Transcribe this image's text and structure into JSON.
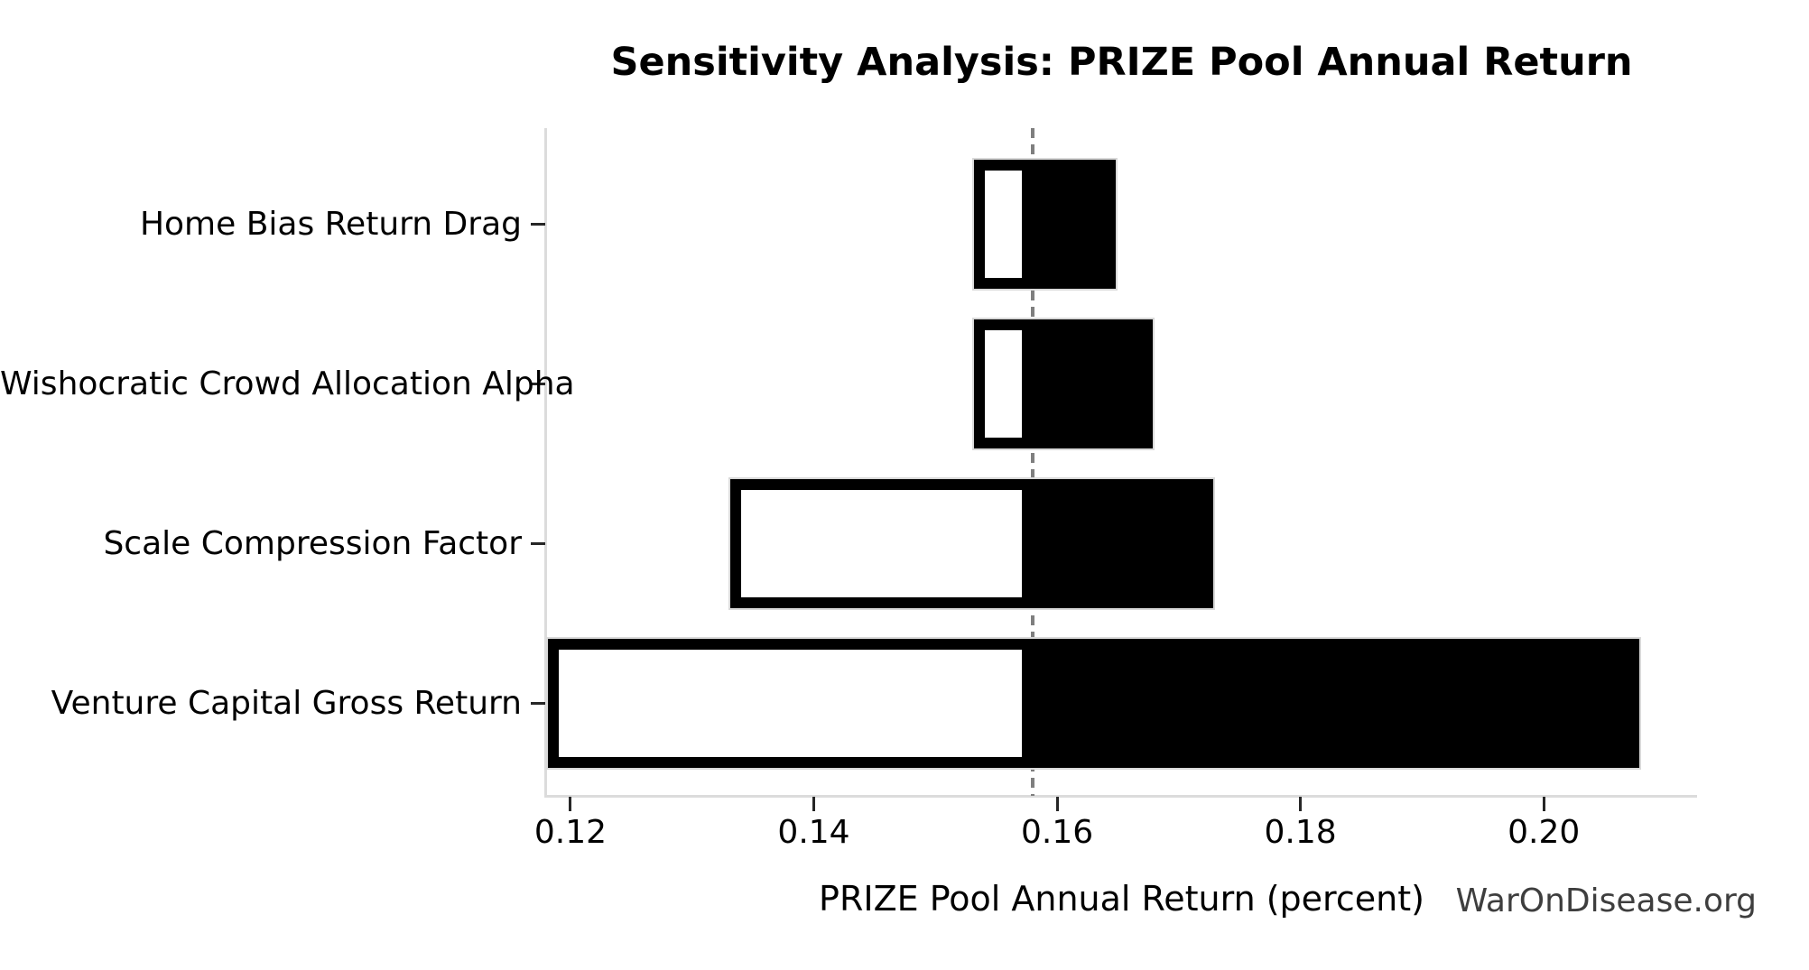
{
  "chart_data": {
    "type": "bar",
    "subtype": "tornado-sensitivity",
    "orientation": "horizontal",
    "title": "Sensitivity Analysis: PRIZE Pool Annual Return",
    "xlabel": "PRIZE Pool Annual Return (percent)",
    "ylabel": "",
    "watermark": "WarOnDisease.org",
    "baseline": 0.158,
    "xlim": [
      0.118,
      0.2126
    ],
    "xticks": [
      0.12,
      0.14,
      0.16,
      0.18,
      0.2
    ],
    "xtick_labels": [
      "0.12",
      "0.14",
      "0.16",
      "0.18",
      "0.20"
    ],
    "categories": [
      "Home Bias Return Drag",
      "Wishocratic Crowd Allocation Alpha",
      "Scale Compression Factor",
      "Venture Capital Gross Return"
    ],
    "series": [
      {
        "name": "low_value",
        "values": [
          0.153,
          0.153,
          0.133,
          0.118
        ]
      },
      {
        "name": "high_value",
        "values": [
          0.165,
          0.168,
          0.173,
          0.208
        ]
      }
    ],
    "legend_position": "none",
    "grid": false,
    "colors": {
      "low_bar_fill": "#ffffff",
      "low_bar_edge": "#000000",
      "high_bar_fill": "#000000",
      "high_bar_edge": "#d9d9d9",
      "baseline_line": "#7f7f7f",
      "spine": "#dcdcdc",
      "tick": "#262626",
      "text": "#000000",
      "watermark_text": "#3e3e3e",
      "background": "#ffffff"
    }
  }
}
